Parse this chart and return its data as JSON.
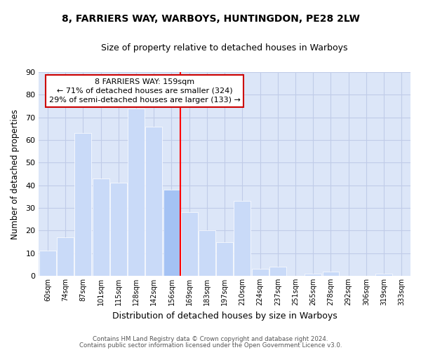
{
  "title": "8, FARRIERS WAY, WARBOYS, HUNTINGDON, PE28 2LW",
  "subtitle": "Size of property relative to detached houses in Warboys",
  "xlabel": "Distribution of detached houses by size in Warboys",
  "ylabel": "Number of detached properties",
  "bar_labels": [
    "60sqm",
    "74sqm",
    "87sqm",
    "101sqm",
    "115sqm",
    "128sqm",
    "142sqm",
    "156sqm",
    "169sqm",
    "183sqm",
    "197sqm",
    "210sqm",
    "224sqm",
    "237sqm",
    "251sqm",
    "265sqm",
    "278sqm",
    "292sqm",
    "306sqm",
    "319sqm",
    "333sqm"
  ],
  "bar_values": [
    11,
    17,
    63,
    43,
    41,
    74,
    66,
    38,
    28,
    20,
    15,
    33,
    3,
    4,
    0,
    1,
    2,
    0,
    0,
    1,
    0
  ],
  "bar_color_light": "#c9daf8",
  "bar_color_highlight": "#a4c2f4",
  "highlight_bar_index": 7,
  "vline_x": 7.5,
  "ylim": [
    0,
    90
  ],
  "yticks": [
    0,
    10,
    20,
    30,
    40,
    50,
    60,
    70,
    80,
    90
  ],
  "annotation_title": "8 FARRIERS WAY: 159sqm",
  "annotation_line1": "← 71% of detached houses are smaller (324)",
  "annotation_line2": "29% of semi-detached houses are larger (133) →",
  "footnote1": "Contains HM Land Registry data © Crown copyright and database right 2024.",
  "footnote2": "Contains public sector information licensed under the Open Government Licence v3.0.",
  "bg_color": "#ffffff",
  "axes_bg_color": "#dce6f8",
  "grid_color": "#c0cce8"
}
